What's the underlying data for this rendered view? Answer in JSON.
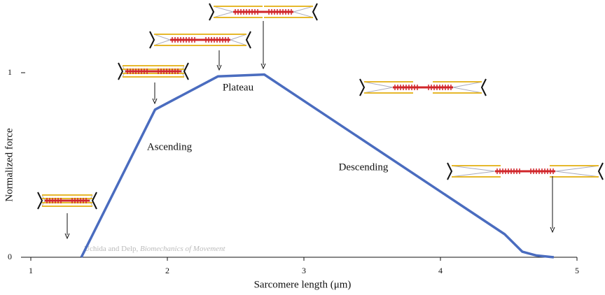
{
  "chart_data": {
    "type": "line",
    "xlabel": "Sarcomere length (μm)",
    "ylabel": "Normalized force",
    "x": [
      1.37,
      1.91,
      2.37,
      2.71,
      4.47,
      4.6,
      4.7,
      4.83
    ],
    "series": [
      {
        "color": "#4a6cbf",
        "values": [
          0,
          0.8,
          0.98,
          0.99,
          0.125,
          0.03,
          0.01,
          0
        ]
      }
    ],
    "xlim": [
      1,
      5
    ],
    "ylim": [
      0,
      1
    ],
    "xticks": [
      1,
      2,
      3,
      4,
      5
    ],
    "yticks": [
      0,
      1
    ],
    "annotations": [
      "Ascending",
      "Plateau",
      "Descending"
    ],
    "credit": {
      "authors": "Uchida and Delp,",
      "book": "Biomechanics of Movement"
    }
  }
}
